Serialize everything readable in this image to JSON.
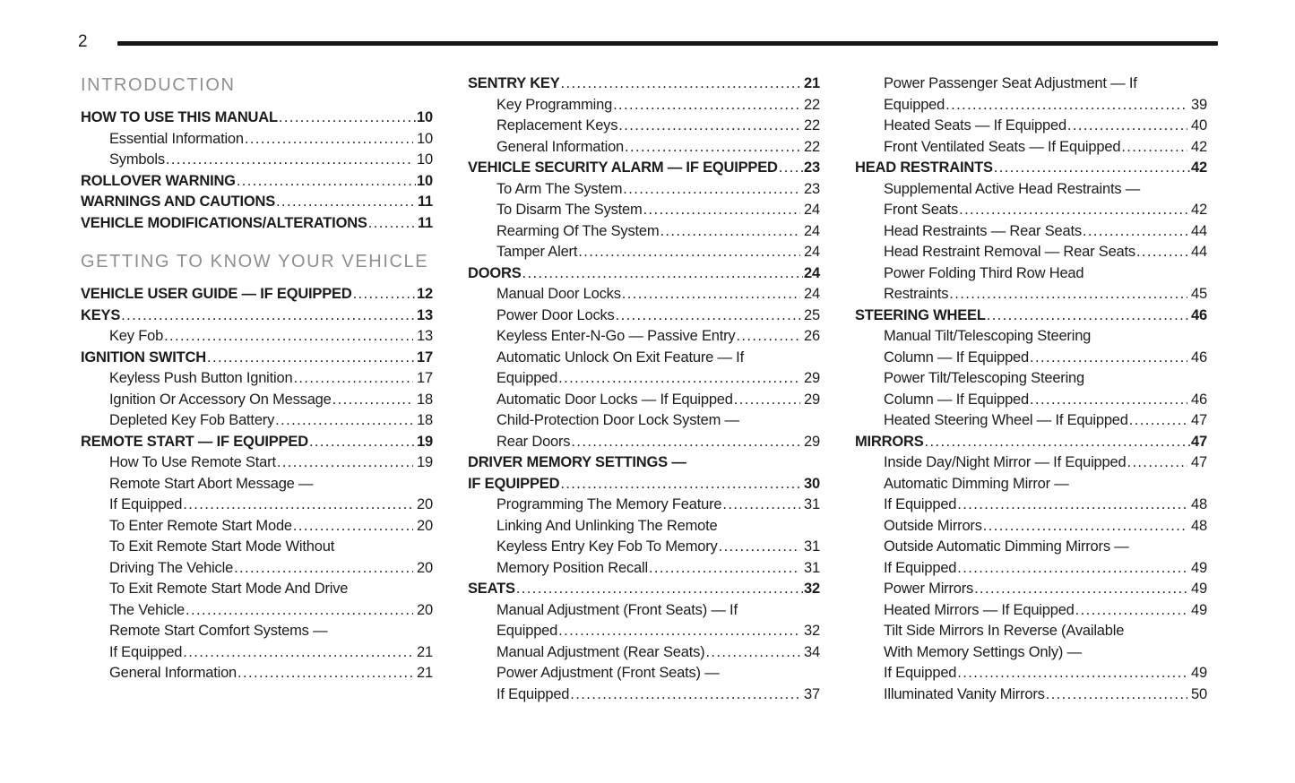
{
  "page_number": "2",
  "columns": [
    {
      "items": [
        {
          "type": "section",
          "label": "INTRODUCTION"
        },
        {
          "type": "entry",
          "bold": true,
          "sub": false,
          "lines": [
            "HOW TO USE THIS MANUAL"
          ],
          "page": "10"
        },
        {
          "type": "entry",
          "bold": false,
          "sub": true,
          "lines": [
            "Essential Information"
          ],
          "page": "10"
        },
        {
          "type": "entry",
          "bold": false,
          "sub": true,
          "lines": [
            "Symbols"
          ],
          "page": "10"
        },
        {
          "type": "entry",
          "bold": true,
          "sub": false,
          "lines": [
            "ROLLOVER WARNING"
          ],
          "page": "10"
        },
        {
          "type": "entry",
          "bold": true,
          "sub": false,
          "lines": [
            "WARNINGS AND CAUTIONS"
          ],
          "page": "11"
        },
        {
          "type": "entry",
          "bold": true,
          "sub": false,
          "lines": [
            "VEHICLE MODIFICATIONS/ALTERATIONS"
          ],
          "page": "11"
        },
        {
          "type": "section",
          "label": "GETTING TO KNOW YOUR VEHICLE"
        },
        {
          "type": "entry",
          "bold": true,
          "sub": false,
          "lines": [
            "VEHICLE USER GUIDE — IF EQUIPPED"
          ],
          "page": "12"
        },
        {
          "type": "entry",
          "bold": true,
          "sub": false,
          "lines": [
            "KEYS"
          ],
          "page": "13"
        },
        {
          "type": "entry",
          "bold": false,
          "sub": true,
          "lines": [
            "Key Fob"
          ],
          "page": "13"
        },
        {
          "type": "entry",
          "bold": true,
          "sub": false,
          "lines": [
            "IGNITION SWITCH"
          ],
          "page": "17"
        },
        {
          "type": "entry",
          "bold": false,
          "sub": true,
          "lines": [
            "Keyless Push Button Ignition"
          ],
          "page": "17"
        },
        {
          "type": "entry",
          "bold": false,
          "sub": true,
          "lines": [
            "Ignition Or Accessory On Message"
          ],
          "page": "18"
        },
        {
          "type": "entry",
          "bold": false,
          "sub": true,
          "lines": [
            "Depleted Key Fob Battery"
          ],
          "page": "18"
        },
        {
          "type": "entry",
          "bold": true,
          "sub": false,
          "lines": [
            "REMOTE START — IF EQUIPPED"
          ],
          "page": "19"
        },
        {
          "type": "entry",
          "bold": false,
          "sub": true,
          "lines": [
            "How To Use Remote Start"
          ],
          "page": "19"
        },
        {
          "type": "entry",
          "bold": false,
          "sub": true,
          "lines": [
            "Remote Start Abort Message —",
            "If Equipped"
          ],
          "page": "20"
        },
        {
          "type": "entry",
          "bold": false,
          "sub": true,
          "lines": [
            "To Enter Remote Start Mode"
          ],
          "page": "20"
        },
        {
          "type": "entry",
          "bold": false,
          "sub": true,
          "lines": [
            "To Exit Remote Start Mode Without",
            "Driving The Vehicle"
          ],
          "page": "20"
        },
        {
          "type": "entry",
          "bold": false,
          "sub": true,
          "lines": [
            "To Exit Remote Start Mode And Drive",
            "The Vehicle"
          ],
          "page": "20"
        },
        {
          "type": "entry",
          "bold": false,
          "sub": true,
          "lines": [
            "Remote Start Comfort Systems —",
            "If Equipped"
          ],
          "page": "21"
        },
        {
          "type": "entry",
          "bold": false,
          "sub": true,
          "lines": [
            "General Information"
          ],
          "page": "21"
        }
      ]
    },
    {
      "items": [
        {
          "type": "entry",
          "bold": true,
          "sub": false,
          "lines": [
            "SENTRY KEY"
          ],
          "page": "21"
        },
        {
          "type": "entry",
          "bold": false,
          "sub": true,
          "lines": [
            "Key Programming"
          ],
          "page": "22"
        },
        {
          "type": "entry",
          "bold": false,
          "sub": true,
          "lines": [
            "Replacement Keys"
          ],
          "page": "22"
        },
        {
          "type": "entry",
          "bold": false,
          "sub": true,
          "lines": [
            "General Information"
          ],
          "page": "22"
        },
        {
          "type": "entry",
          "bold": true,
          "sub": false,
          "lines": [
            "VEHICLE SECURITY ALARM — IF EQUIPPED"
          ],
          "page": "23"
        },
        {
          "type": "entry",
          "bold": false,
          "sub": true,
          "lines": [
            "To Arm The System"
          ],
          "page": "23"
        },
        {
          "type": "entry",
          "bold": false,
          "sub": true,
          "lines": [
            "To Disarm The System"
          ],
          "page": "24"
        },
        {
          "type": "entry",
          "bold": false,
          "sub": true,
          "lines": [
            "Rearming Of The System"
          ],
          "page": "24"
        },
        {
          "type": "entry",
          "bold": false,
          "sub": true,
          "lines": [
            "Tamper Alert"
          ],
          "page": "24"
        },
        {
          "type": "entry",
          "bold": true,
          "sub": false,
          "lines": [
            "DOORS"
          ],
          "page": "24"
        },
        {
          "type": "entry",
          "bold": false,
          "sub": true,
          "lines": [
            "Manual Door Locks"
          ],
          "page": "24"
        },
        {
          "type": "entry",
          "bold": false,
          "sub": true,
          "lines": [
            "Power Door Locks"
          ],
          "page": "25"
        },
        {
          "type": "entry",
          "bold": false,
          "sub": true,
          "lines": [
            "Keyless Enter-N-Go — Passive Entry"
          ],
          "page": "26"
        },
        {
          "type": "entry",
          "bold": false,
          "sub": true,
          "lines": [
            "Automatic Unlock On Exit Feature — If",
            "Equipped"
          ],
          "page": "29"
        },
        {
          "type": "entry",
          "bold": false,
          "sub": true,
          "lines": [
            "Automatic Door Locks — If Equipped"
          ],
          "page": "29"
        },
        {
          "type": "entry",
          "bold": false,
          "sub": true,
          "lines": [
            "Child-Protection Door Lock System —",
            "Rear Doors"
          ],
          "page": "29"
        },
        {
          "type": "entry",
          "bold": true,
          "sub": false,
          "lines": [
            "DRIVER MEMORY SETTINGS —",
            "IF EQUIPPED"
          ],
          "page": "30"
        },
        {
          "type": "entry",
          "bold": false,
          "sub": true,
          "lines": [
            "Programming The Memory Feature"
          ],
          "page": "31"
        },
        {
          "type": "entry",
          "bold": false,
          "sub": true,
          "lines": [
            "Linking And Unlinking The Remote",
            "Keyless Entry Key Fob To Memory"
          ],
          "page": "31"
        },
        {
          "type": "entry",
          "bold": false,
          "sub": true,
          "lines": [
            "Memory Position Recall"
          ],
          "page": "31"
        },
        {
          "type": "entry",
          "bold": true,
          "sub": false,
          "lines": [
            "SEATS"
          ],
          "page": "32"
        },
        {
          "type": "entry",
          "bold": false,
          "sub": true,
          "lines": [
            "Manual Adjustment (Front Seats) — If",
            "Equipped"
          ],
          "page": "32"
        },
        {
          "type": "entry",
          "bold": false,
          "sub": true,
          "lines": [
            "Manual Adjustment (Rear Seats)"
          ],
          "page": "34"
        },
        {
          "type": "entry",
          "bold": false,
          "sub": true,
          "lines": [
            "Power Adjustment (Front Seats) —",
            "If Equipped"
          ],
          "page": "37"
        }
      ]
    },
    {
      "items": [
        {
          "type": "entry",
          "bold": false,
          "sub": true,
          "lines": [
            "Power Passenger Seat Adjustment — If",
            "Equipped"
          ],
          "page": "39"
        },
        {
          "type": "entry",
          "bold": false,
          "sub": true,
          "lines": [
            "Heated Seats — If Equipped"
          ],
          "page": "40"
        },
        {
          "type": "entry",
          "bold": false,
          "sub": true,
          "lines": [
            "Front Ventilated Seats — If Equipped"
          ],
          "page": "42"
        },
        {
          "type": "entry",
          "bold": true,
          "sub": false,
          "lines": [
            "HEAD RESTRAINTS"
          ],
          "page": "42"
        },
        {
          "type": "entry",
          "bold": false,
          "sub": true,
          "lines": [
            "Supplemental Active Head Restraints —",
            "Front Seats"
          ],
          "page": "42"
        },
        {
          "type": "entry",
          "bold": false,
          "sub": true,
          "lines": [
            "Head Restraints — Rear Seats"
          ],
          "page": "44"
        },
        {
          "type": "entry",
          "bold": false,
          "sub": true,
          "lines": [
            "Head Restraint Removal — Rear Seats"
          ],
          "page": "44"
        },
        {
          "type": "entry",
          "bold": false,
          "sub": true,
          "lines": [
            "Power Folding Third Row Head",
            "Restraints"
          ],
          "page": "45"
        },
        {
          "type": "entry",
          "bold": true,
          "sub": false,
          "lines": [
            "STEERING WHEEL"
          ],
          "page": "46"
        },
        {
          "type": "entry",
          "bold": false,
          "sub": true,
          "lines": [
            "Manual Tilt/Telescoping Steering",
            "Column — If Equipped"
          ],
          "page": "46"
        },
        {
          "type": "entry",
          "bold": false,
          "sub": true,
          "lines": [
            "Power Tilt/Telescoping Steering",
            "Column — If Equipped"
          ],
          "page": "46"
        },
        {
          "type": "entry",
          "bold": false,
          "sub": true,
          "lines": [
            "Heated Steering Wheel — If Equipped"
          ],
          "page": "47"
        },
        {
          "type": "entry",
          "bold": true,
          "sub": false,
          "lines": [
            "MIRRORS"
          ],
          "page": "47"
        },
        {
          "type": "entry",
          "bold": false,
          "sub": true,
          "lines": [
            "Inside Day/Night Mirror — If Equipped"
          ],
          "page": "47"
        },
        {
          "type": "entry",
          "bold": false,
          "sub": true,
          "lines": [
            "Automatic Dimming Mirror —",
            "If Equipped"
          ],
          "page": "48"
        },
        {
          "type": "entry",
          "bold": false,
          "sub": true,
          "lines": [
            "Outside Mirrors"
          ],
          "page": "48"
        },
        {
          "type": "entry",
          "bold": false,
          "sub": true,
          "lines": [
            "Outside Automatic Dimming Mirrors —",
            "If Equipped"
          ],
          "page": "49"
        },
        {
          "type": "entry",
          "bold": false,
          "sub": true,
          "lines": [
            "Power Mirrors"
          ],
          "page": "49"
        },
        {
          "type": "entry",
          "bold": false,
          "sub": true,
          "lines": [
            "Heated Mirrors — If Equipped"
          ],
          "page": "49"
        },
        {
          "type": "entry",
          "bold": false,
          "sub": true,
          "lines": [
            "Tilt Side Mirrors In Reverse (Available",
            "With Memory Settings Only) —",
            "If Equipped"
          ],
          "page": "49"
        },
        {
          "type": "entry",
          "bold": false,
          "sub": true,
          "lines": [
            "Illuminated Vanity Mirrors"
          ],
          "page": "50"
        }
      ]
    }
  ]
}
